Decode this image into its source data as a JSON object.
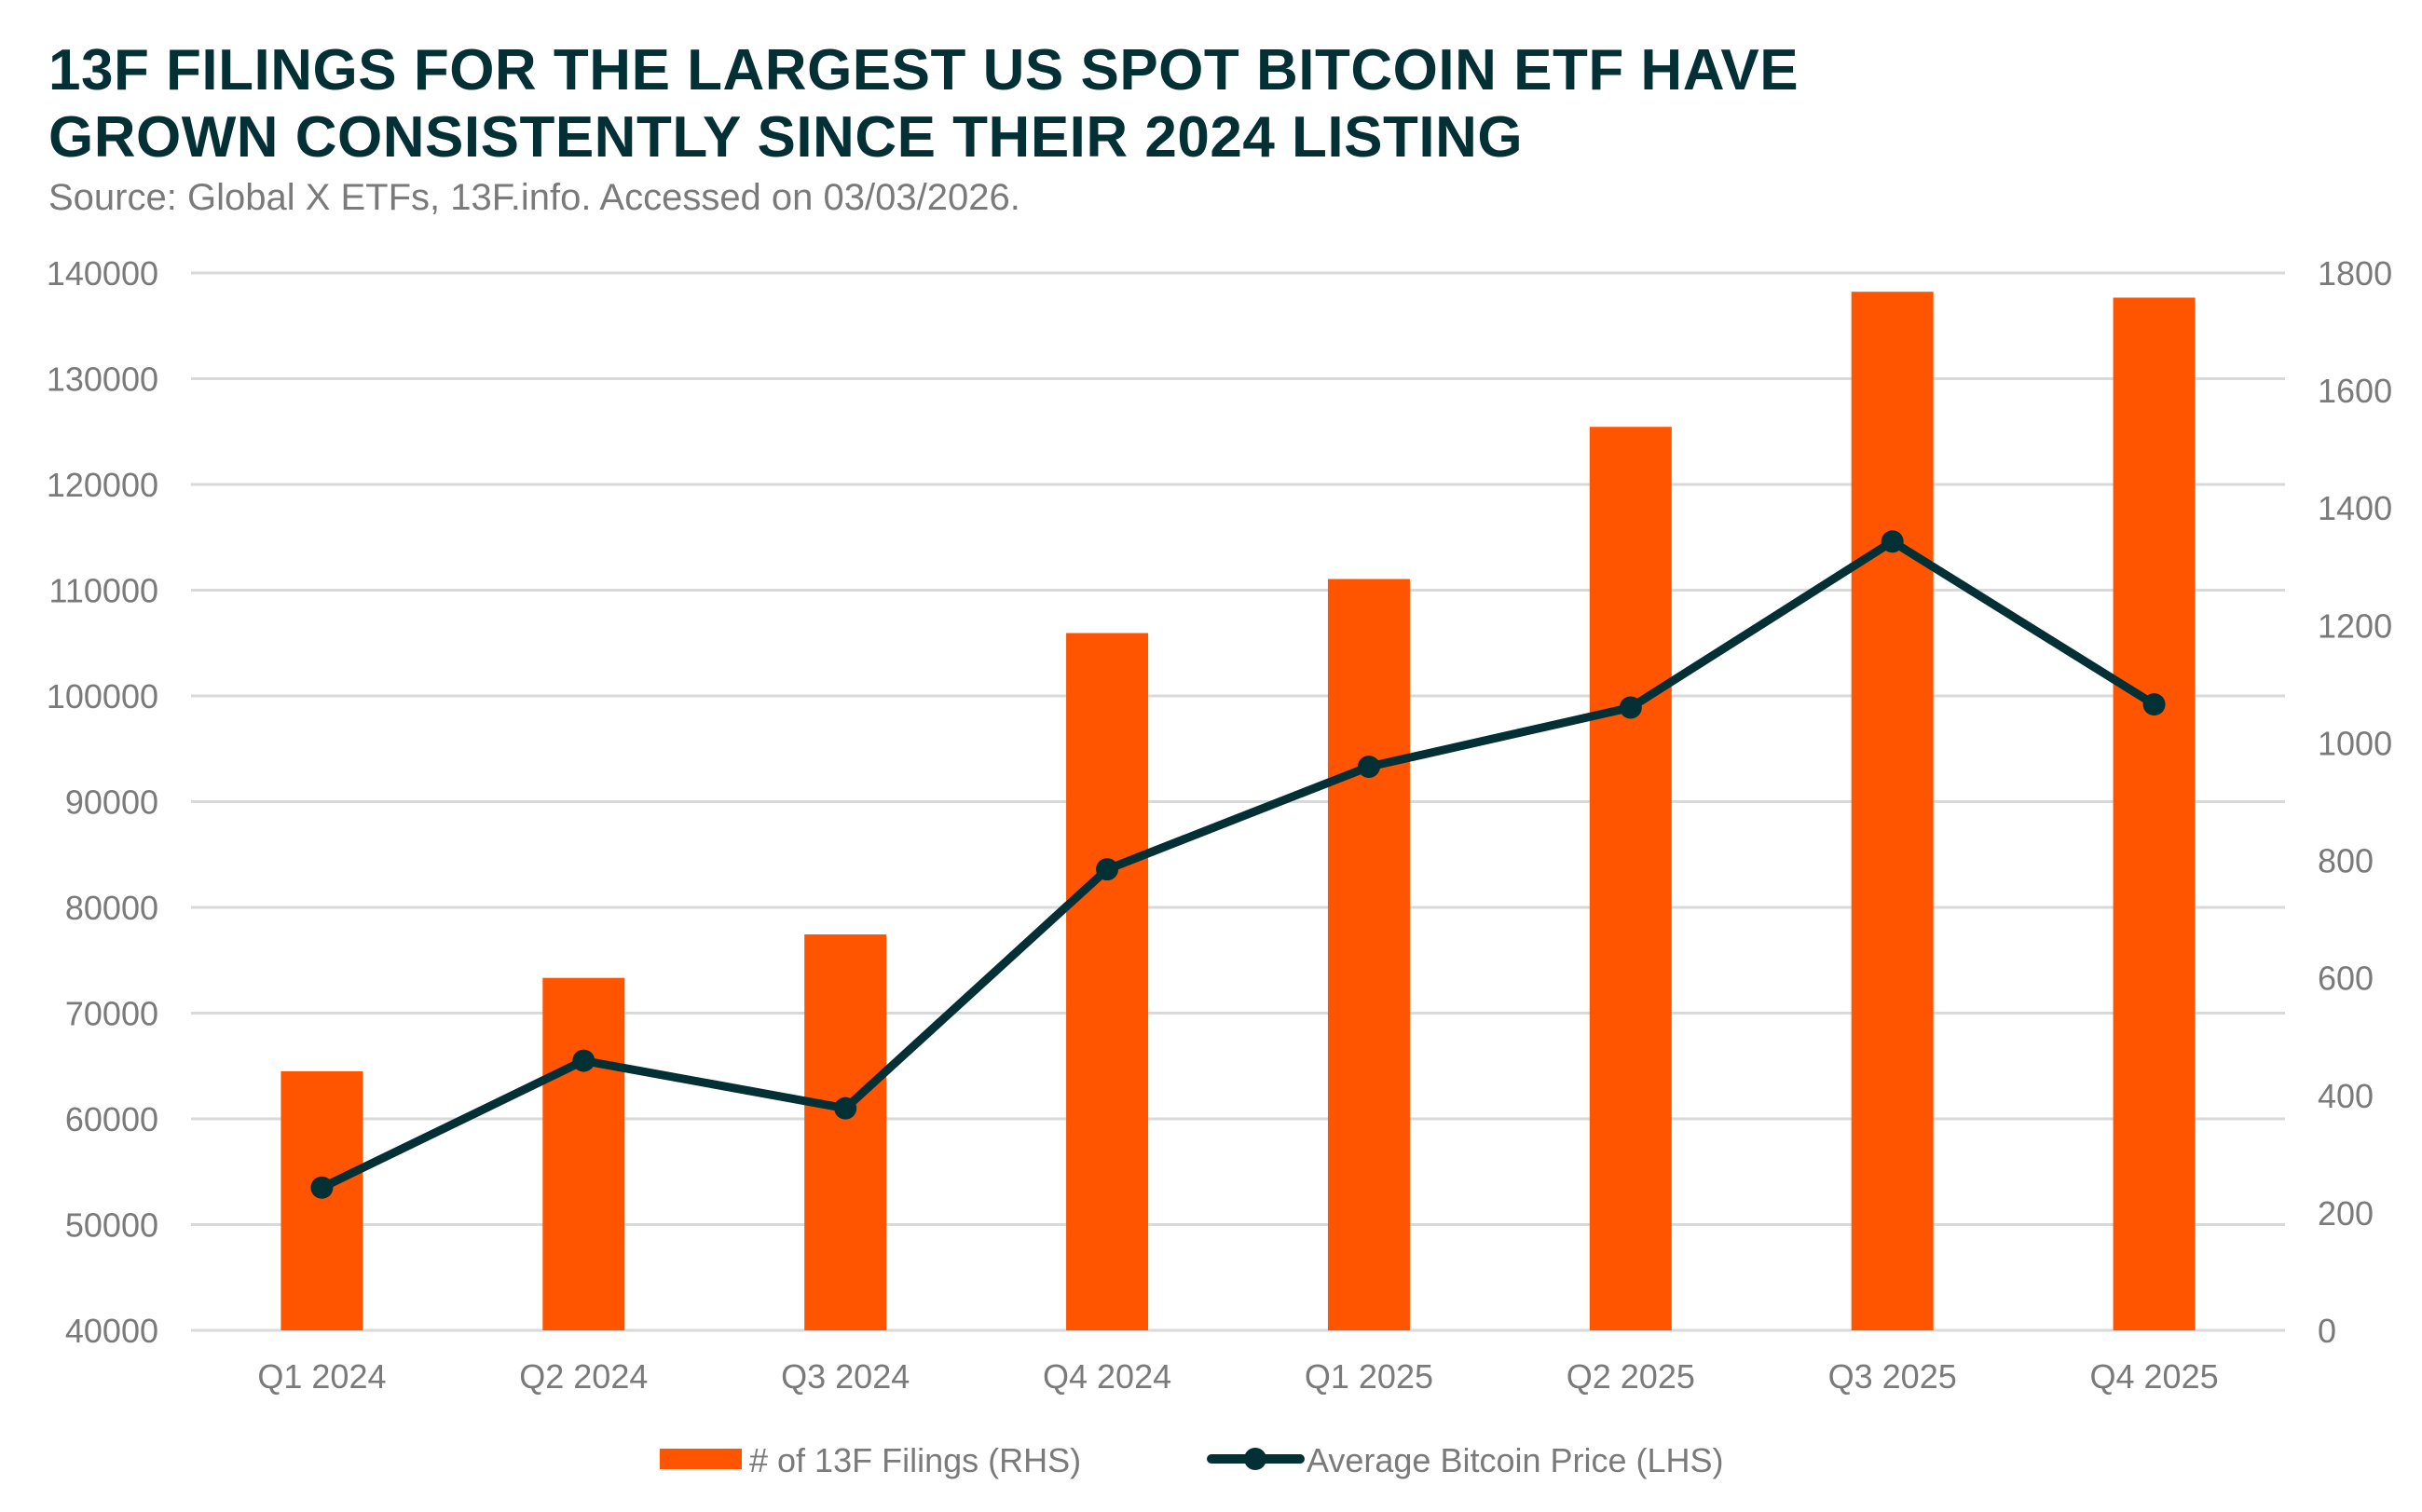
{
  "title_line1": "13F FILINGS FOR THE LARGEST US SPOT BITCOIN ETF HAVE",
  "title_line2": "GROWN CONSISTENTLY SINCE THEIR 2024 LISTING",
  "subtitle": "Source: Global X ETFs, 13F.info. Accessed on 03/03/2026.",
  "colors": {
    "bars": "#FF5500",
    "line": "#023035",
    "grid": "#d9d9d9",
    "text": "#7a7a7a",
    "title": "#023035"
  },
  "chart_data": {
    "type": "bar+line",
    "categories": [
      "Q1 2024",
      "Q2 2024",
      "Q3 2024",
      "Q4 2024",
      "Q1 2025",
      "Q2 2025",
      "Q3 2025",
      "Q4 2025"
    ],
    "series": [
      {
        "name": "# of 13F Filings (RHS)",
        "type": "bar",
        "axis": "right",
        "values": [
          441,
          600,
          674,
          1187,
          1279,
          1538,
          1768,
          1758
        ]
      },
      {
        "name": "Average Bitcoin Price (LHS)",
        "type": "line",
        "axis": "left",
        "values": [
          53500,
          65500,
          61000,
          83600,
          93300,
          98900,
          114600,
          99200
        ]
      }
    ],
    "left_axis": {
      "range": [
        40000,
        140000
      ],
      "ticks": [
        "40000",
        "50000",
        "60000",
        "70000",
        "80000",
        "90000",
        "100000",
        "110000",
        "120000",
        "130000",
        "140000"
      ]
    },
    "right_axis": {
      "range": [
        0,
        1800
      ],
      "ticks": [
        "0",
        "200",
        "400",
        "600",
        "800",
        "1000",
        "1200",
        "1400",
        "1600",
        "1800"
      ]
    },
    "grid": true,
    "legend": "bottom"
  }
}
